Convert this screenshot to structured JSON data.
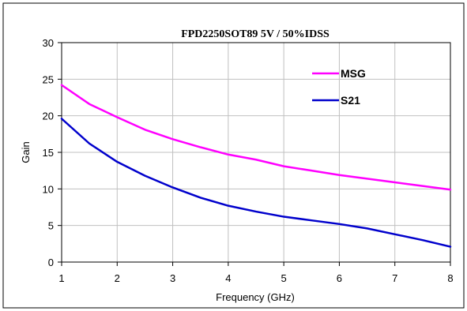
{
  "chart_data": {
    "type": "line",
    "title": "FPD2250SOT89   5V / 50%IDSS",
    "xlabel": "Frequency (GHz)",
    "ylabel": "Gain",
    "xlim": [
      1,
      8
    ],
    "ylim": [
      0,
      30
    ],
    "xticks": [
      1,
      2,
      3,
      4,
      5,
      6,
      7,
      8
    ],
    "yticks": [
      0,
      5,
      10,
      15,
      20,
      25,
      30
    ],
    "grid": true,
    "legend_position": "top-right",
    "x": [
      1,
      1.5,
      2,
      2.5,
      3,
      3.5,
      4,
      4.5,
      5,
      5.5,
      6,
      6.5,
      7,
      7.5,
      8
    ],
    "series": [
      {
        "name": "MSG",
        "color": "#ff00ff",
        "values": [
          24.2,
          21.6,
          19.8,
          18.1,
          16.8,
          15.7,
          14.7,
          14.0,
          13.1,
          12.5,
          11.9,
          11.4,
          10.9,
          10.4,
          9.9
        ]
      },
      {
        "name": "S21",
        "color": "#0000cc",
        "values": [
          19.6,
          16.2,
          13.7,
          11.8,
          10.2,
          8.8,
          7.7,
          6.9,
          6.2,
          5.7,
          5.2,
          4.6,
          3.8,
          3.0,
          2.1
        ]
      }
    ]
  }
}
